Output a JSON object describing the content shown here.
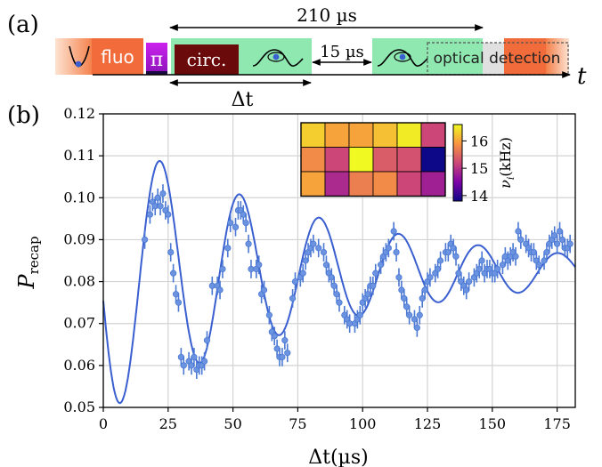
{
  "panel_a": {
    "label": "(a)",
    "blocks": {
      "fluo": "fluo",
      "pi": "π",
      "circ": "circ.",
      "optical_detection": "optical detection"
    },
    "arrows": {
      "top_span": "210 µs",
      "gap": "15 µs",
      "delta_t": "Δt"
    },
    "time_axis": "t",
    "colors": {
      "fluo_orange": "#f26b3a",
      "pi_purple": "#b21fd6",
      "circ_darkred": "#6b0a0a",
      "trap_green": "#8fe8b0",
      "detection_grey": "#e0e0e0"
    }
  },
  "panel_b": {
    "label": "(b)"
  },
  "chart_data": [
    {
      "type": "scatter",
      "xlabel": "Δt(µs)",
      "ylabel": "P_recap",
      "xlim": [
        0,
        182
      ],
      "ylim": [
        0.05,
        0.12
      ],
      "xticks": [
        0,
        25,
        50,
        75,
        100,
        125,
        150,
        175
      ],
      "yticks": [
        0.05,
        0.06,
        0.07,
        0.08,
        0.09,
        0.1,
        0.11,
        0.12
      ],
      "ytick_labels": [
        "0.05",
        "0.06",
        "0.07",
        "0.08",
        "0.09",
        "0.10",
        "0.11",
        "0.12"
      ],
      "grid": true,
      "marker_color": "#4a78d4",
      "fit_color": "#3a5fd0",
      "series": [
        {
          "kind": "points",
          "x": [
            16,
            18,
            19,
            20,
            21,
            22,
            23,
            24,
            25,
            26,
            27,
            28,
            29,
            30,
            31,
            33,
            34,
            35,
            36,
            37,
            38,
            39,
            40,
            42,
            44,
            45,
            46,
            48,
            49,
            51,
            52,
            53,
            54,
            55,
            56,
            57,
            59,
            60,
            61,
            62,
            64,
            65,
            66,
            67,
            68,
            69,
            70,
            71,
            73,
            74,
            76,
            77,
            78,
            79,
            80,
            81,
            83,
            85,
            86,
            87,
            88,
            89,
            90,
            91,
            93,
            94,
            95,
            97,
            98,
            99,
            100,
            101,
            102,
            103,
            104,
            105,
            107,
            108,
            109,
            110,
            112,
            113,
            114,
            115,
            116,
            117,
            118,
            120,
            121,
            122,
            123,
            124,
            125,
            126,
            128,
            129,
            130,
            132,
            133,
            134,
            135,
            136,
            137,
            138,
            139,
            140,
            141,
            143,
            144,
            145,
            146,
            147,
            148,
            149,
            150,
            151,
            152,
            154,
            155,
            156,
            157,
            158,
            159,
            160,
            161,
            163,
            164,
            165,
            166,
            167,
            168,
            170,
            171,
            172,
            173,
            174,
            175,
            176,
            177,
            178,
            179,
            180
          ],
          "y": [
            0.09,
            0.096,
            0.099,
            0.098,
            0.1,
            0.098,
            0.101,
            0.097,
            0.096,
            0.087,
            0.082,
            0.077,
            0.075,
            0.062,
            0.06,
            0.061,
            0.06,
            0.062,
            0.059,
            0.06,
            0.06,
            0.061,
            0.066,
            0.079,
            0.079,
            0.078,
            0.083,
            0.088,
            0.094,
            0.093,
            0.097,
            0.097,
            0.096,
            0.094,
            0.089,
            0.083,
            0.083,
            0.084,
            0.077,
            0.078,
            0.072,
            0.068,
            0.067,
            0.064,
            0.062,
            0.062,
            0.066,
            0.063,
            0.076,
            0.08,
            0.081,
            0.082,
            0.085,
            0.087,
            0.088,
            0.089,
            0.088,
            0.087,
            0.084,
            0.082,
            0.081,
            0.079,
            0.077,
            0.075,
            0.072,
            0.071,
            0.07,
            0.07,
            0.071,
            0.072,
            0.075,
            0.076,
            0.077,
            0.079,
            0.079,
            0.082,
            0.084,
            0.086,
            0.087,
            0.088,
            0.092,
            0.087,
            0.081,
            0.078,
            0.076,
            0.074,
            0.072,
            0.071,
            0.069,
            0.072,
            0.076,
            0.078,
            0.08,
            0.081,
            0.082,
            0.083,
            0.085,
            0.087,
            0.087,
            0.089,
            0.088,
            0.086,
            0.082,
            0.08,
            0.079,
            0.078,
            0.08,
            0.081,
            0.082,
            0.083,
            0.085,
            0.082,
            0.083,
            0.083,
            0.082,
            0.082,
            0.083,
            0.084,
            0.086,
            0.085,
            0.086,
            0.087,
            0.086,
            0.092,
            0.09,
            0.089,
            0.088,
            0.087,
            0.087,
            0.085,
            0.084,
            0.085,
            0.087,
            0.089,
            0.09,
            0.091,
            0.089,
            0.092,
            0.09,
            0.088,
            0.088,
            0.089
          ]
        },
        {
          "kind": "fit",
          "model": "damped cosine",
          "offset": 0.0825,
          "amplitude": 0.034,
          "period_us": 30.7,
          "decay_us": 85,
          "phase_shift_us": 5
        }
      ],
      "error_bar": 0.0022
    },
    {
      "type": "heatmap",
      "colorbar_label": "ν_i(kHz)",
      "colorbar_ticks": [
        14,
        15,
        16
      ],
      "colorbar_range": [
        13.8,
        16.6
      ],
      "colormap": "plasma",
      "rows": 3,
      "cols": 6,
      "values": [
        [
          16.3,
          16.0,
          16.0,
          16.2,
          16.5,
          15.2
        ],
        [
          15.8,
          15.2,
          16.6,
          15.4,
          15.3,
          13.8
        ],
        [
          16.0,
          14.9,
          15.7,
          15.8,
          15.2,
          14.8
        ]
      ]
    }
  ]
}
